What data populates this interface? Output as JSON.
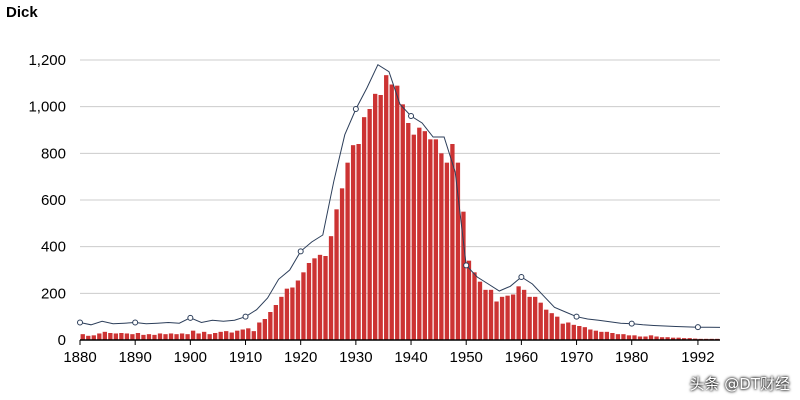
{
  "title": "Dick",
  "watermark": "头条 @DT财经",
  "colors": {
    "bar": "#cc3333",
    "line": "#2c3e5a",
    "grid": "#cccccc",
    "axis": "#000000"
  },
  "chart_data": {
    "type": "bar",
    "title": "Dick",
    "xlabel": "",
    "ylabel": "",
    "grid": true,
    "xlim": [
      1880,
      1996
    ],
    "ylim": [
      0,
      1200
    ],
    "x_tick_labels": [
      "1880",
      "1890",
      "1900",
      "1910",
      "1920",
      "1930",
      "1940",
      "1950",
      "1960",
      "1970",
      "1980",
      "1992"
    ],
    "y_tick_labels": [
      "0",
      "200",
      "400",
      "600",
      "800",
      "1,000",
      "1,200"
    ],
    "series": [
      {
        "type": "bar",
        "x": [
          1880,
          1881,
          1882,
          1883,
          1884,
          1885,
          1886,
          1887,
          1888,
          1889,
          1890,
          1891,
          1892,
          1893,
          1894,
          1895,
          1896,
          1897,
          1898,
          1899,
          1900,
          1901,
          1902,
          1903,
          1904,
          1905,
          1906,
          1907,
          1908,
          1909,
          1910,
          1911,
          1912,
          1913,
          1914,
          1915,
          1916,
          1917,
          1918,
          1919,
          1920,
          1921,
          1922,
          1923,
          1924,
          1925,
          1926,
          1927,
          1928,
          1929,
          1930,
          1931,
          1932,
          1933,
          1934,
          1935,
          1936,
          1937,
          1938,
          1939,
          1940,
          1941,
          1942,
          1943,
          1944,
          1945,
          1946,
          1947,
          1948,
          1949,
          1950,
          1951,
          1952,
          1953,
          1954,
          1955,
          1956,
          1957,
          1958,
          1959,
          1960,
          1961,
          1962,
          1963,
          1964,
          1965,
          1966,
          1967,
          1968,
          1969,
          1970,
          1971,
          1972,
          1973,
          1974,
          1975,
          1976,
          1977,
          1978,
          1979,
          1980,
          1981,
          1982,
          1983,
          1984,
          1985,
          1986,
          1987,
          1988,
          1989,
          1990,
          1991,
          1992,
          1993,
          1994,
          1995
        ],
        "values": [
          25,
          18,
          20,
          28,
          35,
          30,
          28,
          30,
          28,
          25,
          30,
          22,
          25,
          22,
          28,
          25,
          28,
          25,
          28,
          25,
          40,
          28,
          35,
          25,
          30,
          35,
          38,
          32,
          40,
          45,
          50,
          38,
          75,
          90,
          120,
          150,
          185,
          220,
          225,
          255,
          290,
          330,
          350,
          365,
          360,
          445,
          560,
          650,
          760,
          835,
          840,
          955,
          990,
          1055,
          1050,
          1135,
          1095,
          1090,
          1010,
          930,
          880,
          910,
          895,
          860,
          860,
          800,
          760,
          840,
          760,
          550,
          340,
          290,
          250,
          215,
          215,
          165,
          185,
          190,
          195,
          230,
          215,
          185,
          185,
          160,
          130,
          115,
          100,
          70,
          75,
          65,
          60,
          55,
          45,
          40,
          35,
          35,
          30,
          25,
          25,
          20,
          20,
          15,
          15,
          20,
          15,
          12,
          12,
          10,
          10,
          8,
          8,
          6,
          5,
          5,
          5,
          5
        ]
      },
      {
        "type": "line",
        "x": [
          1880,
          1882,
          1884,
          1886,
          1888,
          1890,
          1892,
          1894,
          1896,
          1898,
          1900,
          1902,
          1904,
          1906,
          1908,
          1910,
          1912,
          1914,
          1916,
          1918,
          1920,
          1922,
          1924,
          1926,
          1928,
          1930,
          1932,
          1934,
          1936,
          1938,
          1940,
          1942,
          1944,
          1946,
          1948,
          1950,
          1952,
          1954,
          1956,
          1958,
          1960,
          1962,
          1964,
          1966,
          1968,
          1970,
          1972,
          1974,
          1976,
          1978,
          1980,
          1982,
          1984,
          1986,
          1988,
          1990,
          1992,
          1994,
          1996
        ],
        "values": [
          75,
          65,
          80,
          70,
          72,
          75,
          70,
          72,
          75,
          72,
          95,
          75,
          85,
          80,
          85,
          100,
          130,
          180,
          260,
          300,
          380,
          420,
          450,
          680,
          880,
          990,
          1080,
          1180,
          1150,
          1010,
          960,
          930,
          870,
          870,
          720,
          320,
          270,
          240,
          210,
          230,
          270,
          240,
          190,
          140,
          120,
          100,
          90,
          85,
          78,
          72,
          70,
          65,
          62,
          60,
          58,
          56,
          55,
          55,
          54
        ],
        "markers_at": [
          1880,
          1890,
          1900,
          1910,
          1920,
          1930,
          1940,
          1950,
          1960,
          1970,
          1980,
          1992
        ]
      }
    ]
  }
}
